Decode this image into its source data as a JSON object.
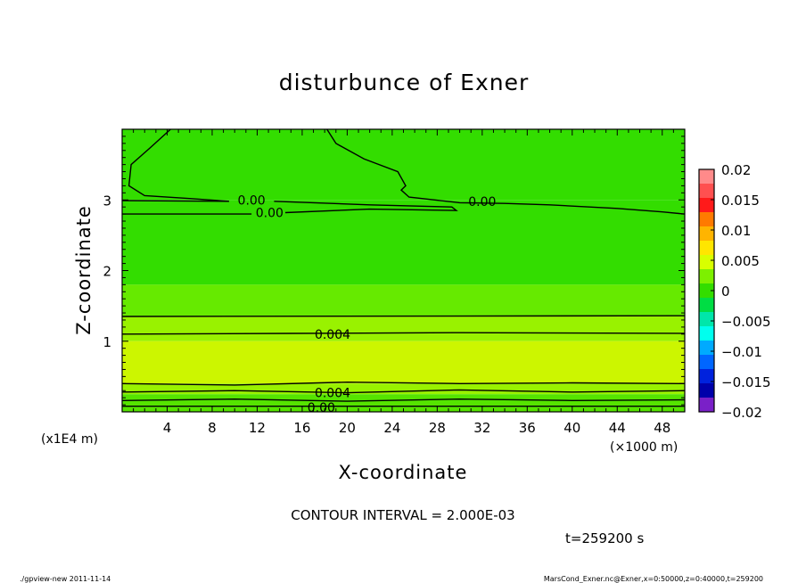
{
  "chart_data": {
    "type": "heatmap",
    "title": "disturbunce of Exner",
    "xlabel": "X-coordinate",
    "ylabel": "Z-coordinate",
    "x_unit": "(×1000 m)",
    "y_unit": "(x1E4 m)",
    "xlim": [
      0,
      50
    ],
    "ylim": [
      0,
      4
    ],
    "x_ticks": [
      4,
      8,
      12,
      16,
      20,
      24,
      28,
      32,
      36,
      40,
      44,
      48
    ],
    "x_tick_labels": [
      "4",
      "8",
      "12",
      "16",
      "20",
      "24",
      "28",
      "32",
      "36",
      "40",
      "44",
      "48"
    ],
    "y_ticks": [
      1,
      2,
      3
    ],
    "y_tick_labels": [
      "1",
      "2",
      "3"
    ],
    "grid": false,
    "colorbar": {
      "placement": "right",
      "range": [
        -0.02,
        0.02
      ],
      "tick_values": [
        0.02,
        0.015,
        0.01,
        0.005,
        0,
        -0.005,
        -0.01,
        -0.015,
        -0.02
      ],
      "tick_labels": [
        "0.02",
        "0.015",
        "0.01",
        "0.005",
        "0",
        "−0.005",
        "−0.01",
        "−0.015",
        "−0.02"
      ],
      "colors_top_to_bottom": [
        "#ff8a8a",
        "#ff5050",
        "#ff1a1a",
        "#ff7a00",
        "#ffb400",
        "#ffe600",
        "#d8ff00",
        "#7df000",
        "#33dd00",
        "#00dd44",
        "#00e6aa",
        "#00ffee",
        "#00aaff",
        "#0066ff",
        "#0022dd",
        "#0000aa",
        "#7a20c8"
      ]
    },
    "bands_by_height": [
      {
        "z_range": [
          3.0,
          4.0
        ],
        "value_range": [
          0,
          0.002
        ],
        "color": "#33dd00"
      },
      {
        "z_range": [
          1.8,
          3.0
        ],
        "value_range": [
          0,
          0.002
        ],
        "color": "#33dd00"
      },
      {
        "z_range": [
          1.35,
          1.8
        ],
        "value_range": [
          0.002,
          0.004
        ],
        "color": "#66ea00"
      },
      {
        "z_range": [
          1.0,
          1.35
        ],
        "value_range": [
          0.004,
          0.005
        ],
        "color": "#99f200"
      },
      {
        "z_range": [
          0.4,
          1.0
        ],
        "value_range": [
          0.005,
          0.007
        ],
        "color": "#ccf600"
      },
      {
        "z_range": [
          0.25,
          0.4
        ],
        "value_range": [
          0.004,
          0.005
        ],
        "color": "#99f200"
      },
      {
        "z_range": [
          0.0,
          0.25
        ],
        "value_range": [
          0,
          0.004
        ],
        "color": "#55e400"
      }
    ],
    "contours": [
      {
        "level": 0.0,
        "label": "0.00"
      },
      {
        "level": 0.004,
        "label": "0.004"
      }
    ],
    "contour_interval_text": "CONTOUR INTERVAL = 2.000E-03",
    "time_text": "t=259200 s"
  },
  "footer": {
    "left": "./gpview-new   2011-11-14",
    "right": "MarsCond_Exner.nc@Exner,x=0:50000,z=0:40000,t=259200"
  }
}
